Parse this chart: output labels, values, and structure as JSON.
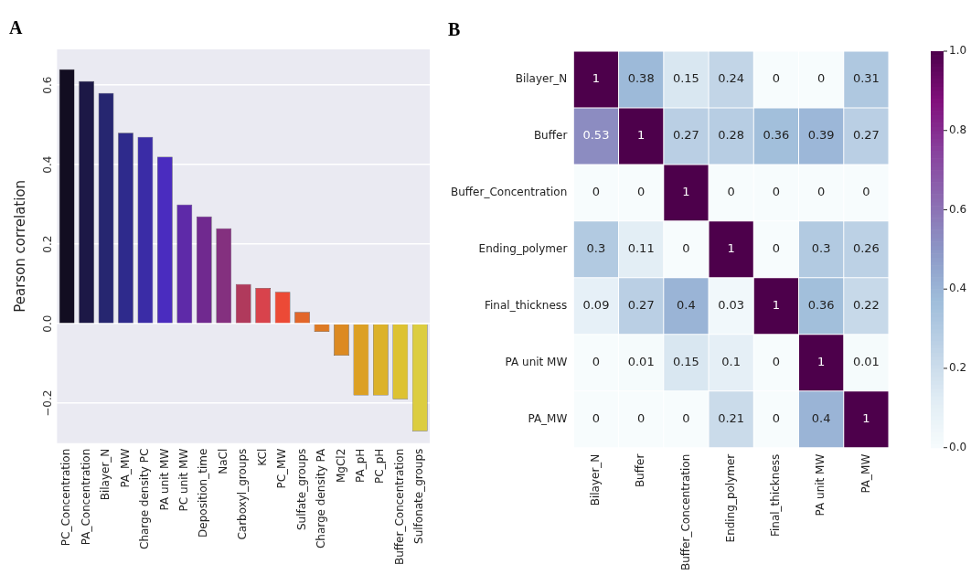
{
  "chart_data": [
    {
      "type": "bar",
      "title": "A",
      "ylabel": "Pearson correlation",
      "categories": [
        "PC_Concentration",
        "PA_Concentration",
        "Bilayer_N",
        "PA_MW",
        "Charge density PC",
        "PA unit MW",
        "PC unit MW",
        "Deposition_time",
        "NaCl",
        "Carboxyl_groups",
        "KCl",
        "PC_MW",
        "Sulfate_groups",
        "Charge density PA",
        "MgCl2",
        "PA_pH",
        "PC_pH",
        "Buffer_Concentration",
        "Sulfonate_groups"
      ],
      "values": [
        0.64,
        0.61,
        0.58,
        0.48,
        0.47,
        0.42,
        0.3,
        0.27,
        0.24,
        0.1,
        0.09,
        0.08,
        0.03,
        -0.02,
        -0.08,
        -0.18,
        -0.18,
        -0.19,
        -0.27
      ],
      "colors": [
        "#120d21",
        "#1c1846",
        "#262670",
        "#2e2a8c",
        "#3a2ca6",
        "#4a2cbf",
        "#5e2aa8",
        "#70298f",
        "#84307f",
        "#b03a5c",
        "#d8434c",
        "#ec4a36",
        "#e2662a",
        "#dd7a24",
        "#dc8a22",
        "#dca024",
        "#dcb22a",
        "#ddc232",
        "#dccd40"
      ],
      "ylim": [
        -0.3,
        0.69
      ],
      "yticks": [
        {
          "value": -0.2,
          "label": "−0.2"
        },
        {
          "value": 0,
          "label": "0.0"
        },
        {
          "value": 0.2,
          "label": "0.2"
        },
        {
          "value": 0.4,
          "label": "0.4"
        },
        {
          "value": 0.6,
          "label": "0.6"
        }
      ],
      "grid": "y",
      "legend": false
    },
    {
      "type": "heatmap",
      "title": "B",
      "categories": [
        "Bilayer_N",
        "Buffer",
        "Buffer_Concentration",
        "Ending_polymer",
        "Final_thickness",
        "PA unit MW",
        "PA_MW"
      ],
      "y_categories": [
        "Bilayer_N",
        "Buffer",
        "Buffer_Concentration",
        "Ending_polymer",
        "Final_thickness",
        "PA unit MW",
        "PA_MW"
      ],
      "cells": [
        [
          1,
          0.38,
          0.15,
          0.24,
          0,
          0,
          0.31
        ],
        [
          0.53,
          1,
          0.27,
          0.28,
          0.36,
          0.39,
          0.27
        ],
        [
          0,
          0,
          1,
          0,
          0,
          0,
          0
        ],
        [
          0.3,
          0.11,
          0,
          1,
          0,
          0.3,
          0.26
        ],
        [
          0.09,
          0.27,
          0.4,
          0.03,
          1,
          0.36,
          0.22
        ],
        [
          0,
          0.01,
          0.15,
          0.1,
          0,
          1,
          0.01
        ],
        [
          0,
          0,
          0,
          0.21,
          0,
          0.4,
          1
        ]
      ],
      "clim": [
        0,
        1
      ],
      "cticks": [
        {
          "value": 0,
          "label": "0.0"
        },
        {
          "value": 0.2,
          "label": "0.2"
        },
        {
          "value": 0.4,
          "label": "0.4"
        },
        {
          "value": 0.6,
          "label": "0.6"
        },
        {
          "value": 0.8,
          "label": "0.8"
        },
        {
          "value": 1,
          "label": "1.0"
        }
      ],
      "data_labels": true,
      "legend": false
    }
  ]
}
